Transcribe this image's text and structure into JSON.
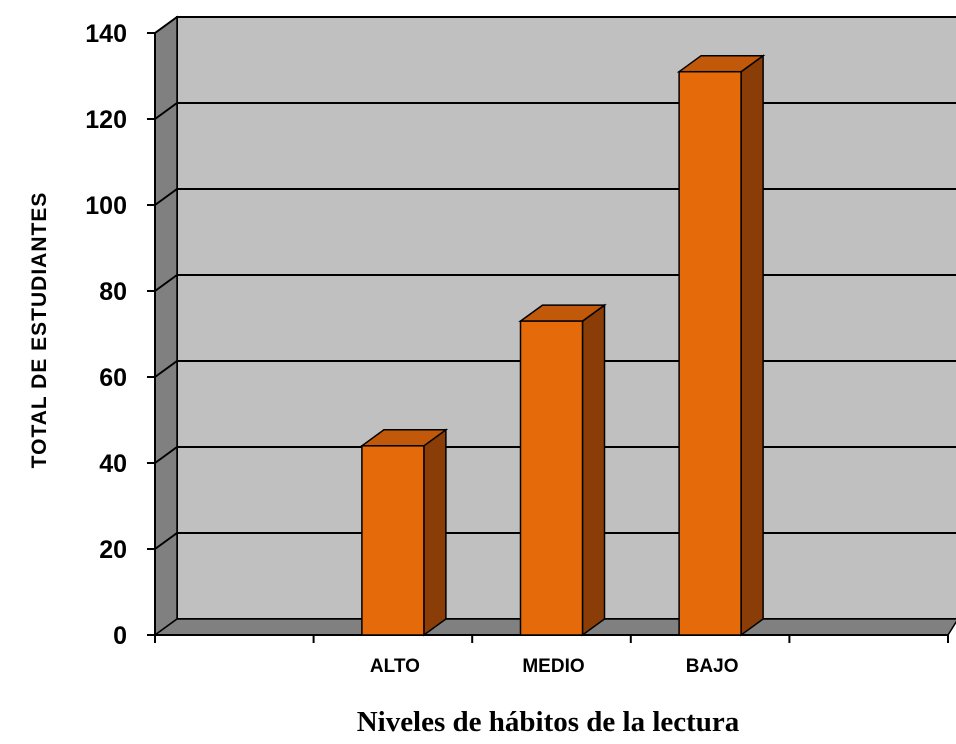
{
  "chart_data": {
    "type": "bar",
    "categories": [
      "",
      "ALTO",
      "MEDIO",
      "BAJO",
      ""
    ],
    "values": [
      null,
      44,
      73,
      131,
      null
    ],
    "title": "",
    "xlabel": "Niveles de hábitos de la lectura",
    "ylabel": "TOTAL   DE   ESTUDIANTES",
    "ylim": [
      0,
      140
    ],
    "yticks": [
      0,
      20,
      40,
      60,
      80,
      100,
      120,
      140
    ],
    "grid": true,
    "style": "3d",
    "colors": {
      "bar_front": "#E46A0A",
      "bar_top": "#C2590A",
      "bar_side": "#8A3D06",
      "back_wall": "#C0C0C0",
      "side_wall": "#808080",
      "floor": "#808080"
    }
  }
}
